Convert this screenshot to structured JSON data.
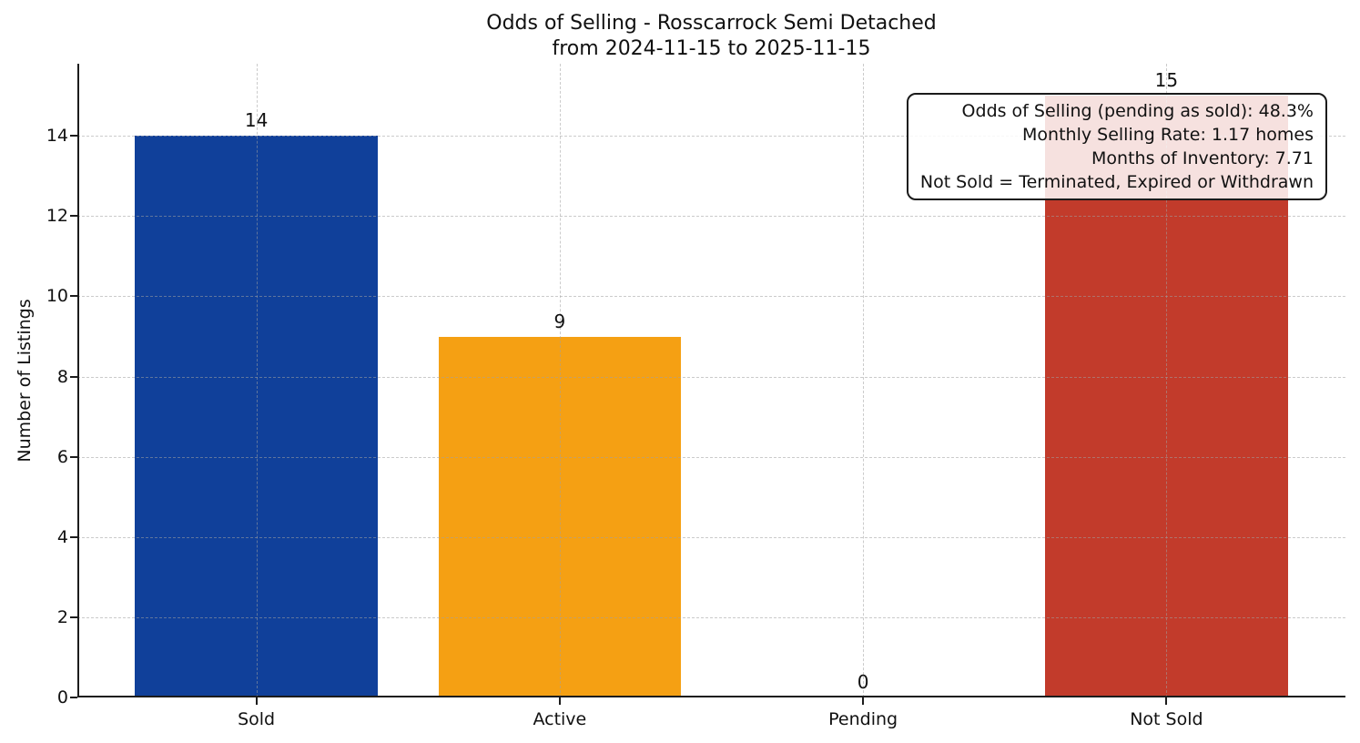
{
  "chart_data": {
    "type": "bar",
    "title_lines": [
      "Odds of Selling - Rosscarrock Semi Detached",
      "from 2024-11-15 to 2025-11-15"
    ],
    "title": "Odds of Selling - Rosscarrock Semi Detached from 2024-11-15 to 2025-11-15",
    "ylabel": "Number of Listings",
    "xlabel": "",
    "categories": [
      "Sold",
      "Active",
      "Pending",
      "Not Sold"
    ],
    "values": [
      14,
      9,
      0,
      15
    ],
    "bar_colors": [
      "#10409a",
      "#f5a013",
      null,
      "#c23b2b"
    ],
    "yticks": [
      0,
      2,
      4,
      6,
      8,
      10,
      12,
      14
    ],
    "ylim": [
      0,
      15.8
    ],
    "grid": true,
    "grid_style": "dashed",
    "legend_position": "none",
    "background": "#ffffff",
    "text_color": "#111111",
    "annotation_box": {
      "position": "top-right",
      "lines": [
        "Odds of Selling (pending as sold): 48.3%",
        "Monthly Selling Rate: 1.17 homes",
        "Months of Inventory: 7.71",
        "Not Sold = Terminated, Expired or Withdrawn"
      ]
    }
  }
}
